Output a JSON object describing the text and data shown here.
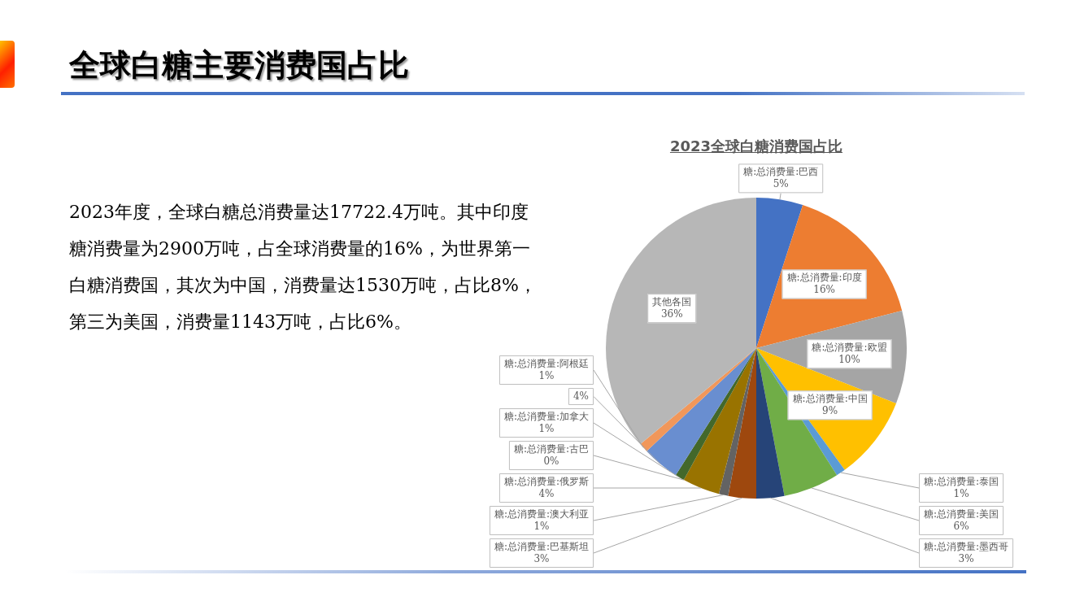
{
  "chart_data": {
    "type": "pie",
    "title": "全球白糖主要消费国占比",
    "subtitle": "2023全球白糖消费国占比",
    "annotations": [
      "2023年度，全球白糖总消费量达17722.4万吨。其中印度糖消费量为2900万吨，占全球消费量的16%，为世界第一白糖消费国，其次为中国，消费量达1530万吨，占比8%，第三为美国，消费量1143万吨，占比6%。"
    ],
    "categories": [
      "糖:总消费量:巴西",
      "糖:总消费量:印度",
      "糖:总消费量:欧盟",
      "糖:总消费量:中国",
      "糖:总消费量:泰国",
      "糖:总消费量:美国",
      "糖:总消费量:墨西哥",
      "糖:总消费量:巴基斯坦",
      "糖:总消费量:澳大利亚",
      "糖:总消费量:俄罗斯",
      "糖:总消费量:古巴",
      "糖:总消费量:加拿大",
      null,
      "糖:总消费量:阿根廷",
      "其他各国"
    ],
    "values": [
      5,
      16,
      10,
      9,
      1,
      6,
      3,
      3,
      1,
      4,
      0,
      1,
      4,
      1,
      36
    ],
    "value_labels": [
      "5%",
      "16%",
      "10%",
      "9%",
      "1%",
      "6%",
      "3%",
      "3%",
      "1%",
      "4%",
      "0%",
      "1%",
      "4%",
      "1%",
      "36%"
    ],
    "colors": [
      "#4472c4",
      "#ed7d31",
      "#a5a5a5",
      "#ffc000",
      "#5b9bd5",
      "#70ad47",
      "#264478",
      "#9e480e",
      "#636363",
      "#997300",
      "#255e91",
      "#43682b",
      "#698ed0",
      "#f1975a",
      "#b7b7b7"
    ]
  }
}
